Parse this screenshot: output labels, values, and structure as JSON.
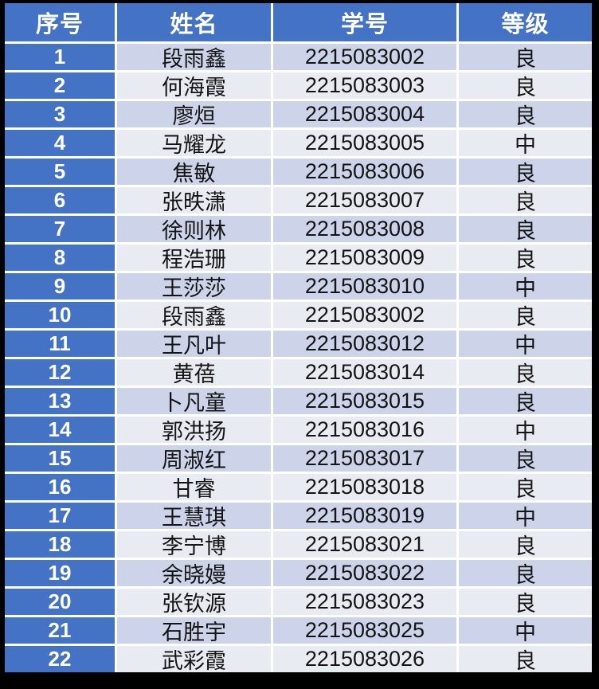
{
  "colors": {
    "page_bg": "#000000",
    "header_bg": "#4472c4",
    "header_text": "#ffffff",
    "band_dark": "#cdd4e9",
    "band_light": "#e9ebf3",
    "divider": "#ffffff",
    "body_text": "#141414"
  },
  "table": {
    "columns": [
      {
        "key": "index",
        "label": "序号"
      },
      {
        "key": "name",
        "label": "姓名"
      },
      {
        "key": "student_id",
        "label": "学号"
      },
      {
        "key": "grade",
        "label": "等级"
      }
    ],
    "rows": [
      {
        "index": "1",
        "name": "段雨鑫",
        "student_id": "2215083002",
        "grade": "良"
      },
      {
        "index": "2",
        "name": "何海霞",
        "student_id": "2215083003",
        "grade": "良"
      },
      {
        "index": "3",
        "name": "廖烜",
        "student_id": "2215083004",
        "grade": "良"
      },
      {
        "index": "4",
        "name": "马耀龙",
        "student_id": "2215083005",
        "grade": "中"
      },
      {
        "index": "5",
        "name": "焦敏",
        "student_id": "2215083006",
        "grade": "良"
      },
      {
        "index": "6",
        "name": "张昳潇",
        "student_id": "2215083007",
        "grade": "良"
      },
      {
        "index": "7",
        "name": "徐则林",
        "student_id": "2215083008",
        "grade": "良"
      },
      {
        "index": "8",
        "name": "程浩珊",
        "student_id": "2215083009",
        "grade": "良"
      },
      {
        "index": "9",
        "name": "王莎莎",
        "student_id": "2215083010",
        "grade": "中"
      },
      {
        "index": "10",
        "name": "段雨鑫",
        "student_id": "2215083002",
        "grade": "良"
      },
      {
        "index": "11",
        "name": "王凡叶",
        "student_id": "2215083012",
        "grade": "中"
      },
      {
        "index": "12",
        "name": "黄蓓",
        "student_id": "2215083014",
        "grade": "良"
      },
      {
        "index": "13",
        "name": "卜凡童",
        "student_id": "2215083015",
        "grade": "良"
      },
      {
        "index": "14",
        "name": "郭洪扬",
        "student_id": "2215083016",
        "grade": "中"
      },
      {
        "index": "15",
        "name": "周淑红",
        "student_id": "2215083017",
        "grade": "良"
      },
      {
        "index": "16",
        "name": "甘睿",
        "student_id": "2215083018",
        "grade": "良"
      },
      {
        "index": "17",
        "name": "王慧琪",
        "student_id": "2215083019",
        "grade": "中"
      },
      {
        "index": "18",
        "name": "李宁博",
        "student_id": "2215083021",
        "grade": "良"
      },
      {
        "index": "19",
        "name": "余晓嫚",
        "student_id": "2215083022",
        "grade": "良"
      },
      {
        "index": "20",
        "name": "张钦源",
        "student_id": "2215083023",
        "grade": "良"
      },
      {
        "index": "21",
        "name": "石胜宇",
        "student_id": "2215083025",
        "grade": "中"
      },
      {
        "index": "22",
        "name": "武彩霞",
        "student_id": "2215083026",
        "grade": "良"
      }
    ]
  }
}
